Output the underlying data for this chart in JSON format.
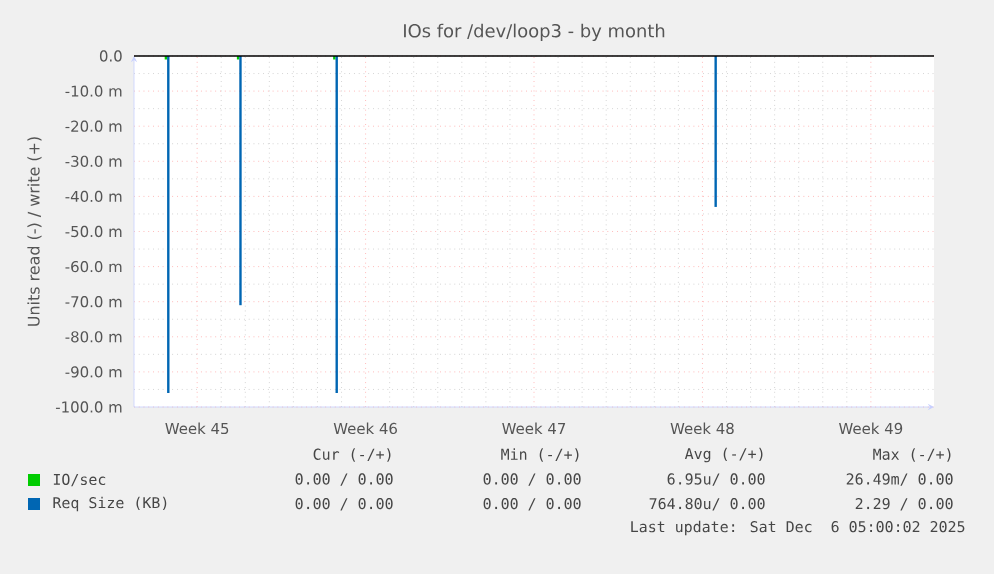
{
  "chart_data": {
    "type": "bar",
    "title": "IOs for /dev/loop3 - by month",
    "ylabel": "Units read (-) / write (+)",
    "categories": [
      null,
      null,
      null,
      null,
      null,
      null,
      null,
      null,
      null,
      null,
      "Week 45",
      null,
      null,
      null,
      null,
      null,
      null,
      null,
      null,
      null,
      null,
      null,
      null,
      null,
      null,
      null,
      null,
      null,
      null,
      null,
      null,
      null,
      null,
      null,
      null,
      null,
      null,
      null,
      "Week 46",
      null,
      null,
      null,
      null,
      null,
      null,
      null,
      null,
      null,
      null,
      null,
      null,
      null,
      null,
      null,
      null,
      null,
      null,
      null,
      null,
      null,
      null,
      null,
      null,
      null,
      null,
      null,
      "Week 47",
      null,
      null,
      null,
      null,
      null,
      null,
      null,
      null,
      null,
      null,
      null,
      null,
      null,
      null,
      null,
      null,
      null,
      null,
      null,
      null,
      null,
      null,
      null,
      null,
      null,
      null,
      null,
      "Week 48",
      null,
      null,
      null,
      null,
      null,
      null,
      null,
      null,
      null,
      null,
      null,
      null,
      null,
      null,
      null,
      null,
      null,
      null,
      null,
      null,
      null,
      null,
      null,
      null,
      null,
      null,
      null,
      "Week 49",
      null,
      null,
      null,
      null,
      null,
      null,
      null,
      null,
      null,
      null
    ],
    "ylim": [
      -100,
      0
    ],
    "yticks": [
      {
        "value": -100,
        "label": "-100.0 m"
      },
      {
        "value": -90,
        "label": "-90.0 m"
      },
      {
        "value": -80,
        "label": "-80.0 m"
      },
      {
        "value": -70,
        "label": "-70.0 m"
      },
      {
        "value": -60,
        "label": "-60.0 m"
      },
      {
        "value": -50,
        "label": "-50.0 m"
      },
      {
        "value": -40,
        "label": "-40.0 m"
      },
      {
        "value": -30,
        "label": "-30.0 m"
      },
      {
        "value": -20,
        "label": "-20.0 m"
      },
      {
        "value": -10,
        "label": "-10.0 m"
      },
      {
        "value": 0,
        "label": "0.0"
      }
    ],
    "grid": true,
    "legend": "bottom",
    "series": [
      {
        "name": "IO/sec",
        "color": "#00cc00",
        "values": [
          null,
          null,
          null,
          null,
          null,
          -1,
          null,
          null,
          null,
          null,
          null,
          null,
          null,
          null,
          null,
          null,
          null,
          -1,
          null,
          null,
          null,
          null,
          null,
          null,
          null,
          null,
          null,
          null,
          null,
          null,
          null,
          null,
          null,
          -1,
          null,
          null,
          null,
          null,
          null,
          null,
          null,
          null,
          null,
          null,
          null,
          null,
          null,
          null,
          null,
          null,
          null,
          null,
          null,
          null,
          null,
          null,
          null,
          null,
          null,
          null,
          null,
          null,
          null,
          null,
          null,
          null,
          null,
          null,
          null,
          null,
          null,
          null,
          null,
          null,
          null,
          null,
          null,
          null,
          null,
          null,
          null,
          null,
          null,
          null,
          null,
          null,
          null,
          null,
          null,
          null,
          null,
          null,
          null,
          null,
          null,
          null,
          null,
          null,
          null,
          null,
          null,
          null,
          null,
          null,
          null,
          null,
          null,
          null,
          null,
          null,
          null,
          null,
          null,
          null,
          null,
          null,
          null,
          null,
          null,
          null,
          null,
          null,
          null,
          null,
          null,
          null,
          null,
          null,
          null,
          null,
          null,
          null,
          null
        ]
      },
      {
        "name": "Req Size (KB)",
        "color": "#0066b3",
        "values": [
          null,
          null,
          null,
          null,
          null,
          -96,
          null,
          null,
          null,
          null,
          null,
          null,
          null,
          null,
          null,
          null,
          null,
          -71,
          null,
          null,
          null,
          null,
          null,
          null,
          null,
          null,
          null,
          null,
          null,
          null,
          null,
          null,
          null,
          -96,
          null,
          null,
          null,
          null,
          null,
          null,
          null,
          null,
          null,
          null,
          null,
          null,
          null,
          null,
          null,
          null,
          null,
          null,
          null,
          null,
          null,
          null,
          null,
          null,
          null,
          null,
          null,
          null,
          null,
          null,
          null,
          null,
          null,
          null,
          null,
          null,
          null,
          null,
          null,
          null,
          null,
          null,
          null,
          null,
          null,
          null,
          null,
          null,
          null,
          null,
          null,
          null,
          null,
          null,
          null,
          null,
          null,
          null,
          null,
          null,
          null,
          null,
          -43,
          null,
          null,
          null,
          null,
          null,
          null,
          null,
          null,
          null,
          null,
          null,
          null,
          null,
          null,
          null,
          null,
          null,
          null,
          null,
          null,
          null,
          null,
          null,
          null,
          null,
          null,
          null,
          null,
          null,
          null,
          null,
          null,
          null,
          null,
          null,
          null
        ]
      }
    ],
    "ref_lines": [
      {
        "axis": "y",
        "value": 0,
        "color": "#000000"
      }
    ],
    "annotations": [
      "Cur (-/+)",
      "Min (-/+)",
      "Avg (-/+)",
      "Max (-/+)",
      "0.00 / 0.00",
      "0.00 / 0.00",
      "6.95u/ 0.00",
      "26.49m/ 0.00",
      "0.00 / 0.00",
      "0.00 / 0.00",
      "764.80u/ 0.00",
      "2.29 / 0.00",
      "Last update: Sat Dec  6 05:00:02 2025"
    ]
  }
}
